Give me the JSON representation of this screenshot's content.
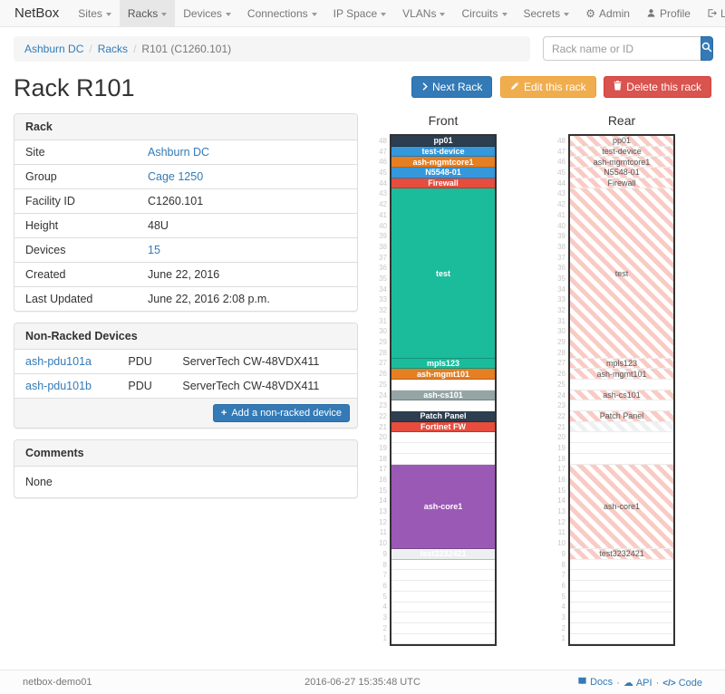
{
  "navbar": {
    "brand": "NetBox",
    "items": [
      {
        "label": "Sites"
      },
      {
        "label": "Racks",
        "active": true
      },
      {
        "label": "Devices"
      },
      {
        "label": "Connections"
      },
      {
        "label": "IP Space"
      },
      {
        "label": "VLANs"
      },
      {
        "label": "Circuits"
      },
      {
        "label": "Secrets"
      }
    ],
    "right_items": [
      {
        "label": "Admin",
        "icon": "gear-icon"
      },
      {
        "label": "Profile",
        "icon": "person-icon"
      },
      {
        "label": "Log out",
        "icon": "logout-icon"
      }
    ]
  },
  "breadcrumb": {
    "items": [
      {
        "label": "Ashburn DC",
        "link": true
      },
      {
        "label": "Racks",
        "link": true
      },
      {
        "label": "R101 (C1260.101)",
        "link": false
      }
    ]
  },
  "search": {
    "placeholder": "Rack name or ID"
  },
  "actions": {
    "next_label": "Next Rack",
    "edit_label": "Edit this rack",
    "delete_label": "Delete this rack"
  },
  "page_title": "Rack R101",
  "rack_panel": {
    "title": "Rack",
    "rows": [
      {
        "label": "Site",
        "value": "Ashburn DC",
        "link": true
      },
      {
        "label": "Group",
        "value": "Cage 1250",
        "link": true
      },
      {
        "label": "Facility ID",
        "value": "C1260.101",
        "link": false
      },
      {
        "label": "Height",
        "value": "48U",
        "link": false
      },
      {
        "label": "Devices",
        "value": "15",
        "link": true
      },
      {
        "label": "Created",
        "value": "June 22, 2016",
        "link": false
      },
      {
        "label": "Last Updated",
        "value": "June 22, 2016 2:08 p.m.",
        "link": false
      }
    ]
  },
  "nonracked_panel": {
    "title": "Non-Racked Devices",
    "rows": [
      {
        "name": "ash-pdu101a",
        "role": "PDU",
        "model": "ServerTech CW-48VDX411"
      },
      {
        "name": "ash-pdu101b",
        "role": "PDU",
        "model": "ServerTech CW-48VDX411"
      }
    ],
    "add_label": "Add a non-racked device"
  },
  "comments_panel": {
    "title": "Comments",
    "body": "None"
  },
  "elevations": {
    "front_title": "Front",
    "rear_title": "Rear",
    "units_total": 48,
    "devices": [
      {
        "name": "pp01",
        "top_unit": 48,
        "u_height": 1,
        "color": "#2c3e50"
      },
      {
        "name": "test-device",
        "top_unit": 47,
        "u_height": 1,
        "color": "#3498db"
      },
      {
        "name": "ash-mgmtcore1",
        "top_unit": 46,
        "u_height": 1,
        "color": "#e67e22"
      },
      {
        "name": "N5548-01",
        "top_unit": 45,
        "u_height": 1,
        "color": "#3498db"
      },
      {
        "name": "Firewall",
        "top_unit": 44,
        "u_height": 1,
        "color": "#e74c3c"
      },
      {
        "name": "test",
        "top_unit": 43,
        "u_height": 16,
        "color": "#1abc9c"
      },
      {
        "name": "mpls123",
        "top_unit": 27,
        "u_height": 1,
        "color": "#1abc9c"
      },
      {
        "name": "ash-mgmt101",
        "top_unit": 26,
        "u_height": 1,
        "color": "#e67e22"
      },
      {
        "name": "ash-cs101",
        "top_unit": 24,
        "u_height": 1,
        "color": "#95a5a6"
      },
      {
        "name": "Patch Panel",
        "top_unit": 22,
        "u_height": 1,
        "color": "#2c3e50"
      },
      {
        "name": "Fortinet FW",
        "top_unit": 21,
        "u_height": 1,
        "color": "#e74c3c",
        "rear_hidden": true
      },
      {
        "name": "ash-core1",
        "top_unit": 17,
        "u_height": 8,
        "color": "#9b59b6"
      },
      {
        "name": "test3232421",
        "top_unit": 9,
        "u_height": 1,
        "color": "#ecf0f1"
      }
    ]
  },
  "footer": {
    "hostname": "netbox-demo01",
    "timestamp": "2016-06-27 15:35:48 UTC",
    "links": [
      {
        "label": "Docs",
        "icon": "book-icon"
      },
      {
        "label": "API",
        "icon": "cloud-icon"
      },
      {
        "label": "Code",
        "icon": "code-icon"
      }
    ]
  },
  "colors": {
    "accent": "#337ab7",
    "warning": "#f0ad4e",
    "danger": "#d9534f",
    "rear_hatch": "#f9cbc5"
  }
}
